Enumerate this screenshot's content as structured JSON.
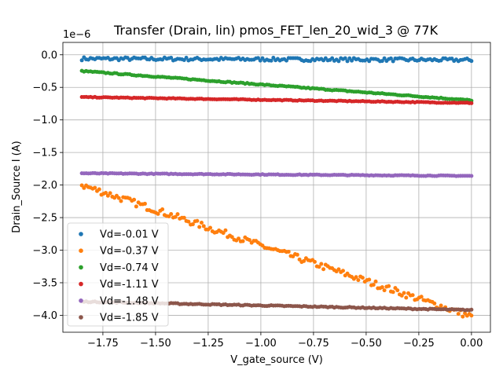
{
  "chart_data": {
    "type": "scatter",
    "title": "Transfer (Drain, lin) pmos_FET_len_20_wid_3 @ 77K",
    "xlabel": "V_gate_source (V)",
    "ylabel": "Drain_Source I (A)",
    "y_offset_label": "1e−6",
    "xlim": [
      -1.94,
      0.09
    ],
    "ylim": [
      -4.26,
      0.19
    ],
    "x_ticks": [
      -1.75,
      -1.5,
      -1.25,
      -1.0,
      -0.75,
      -0.5,
      -0.25,
      0.0
    ],
    "x_tick_labels": [
      "−1.75",
      "−1.50",
      "−1.25",
      "−1.00",
      "−0.75",
      "−0.50",
      "−0.25",
      "0.00"
    ],
    "y_ticks": [
      0.0,
      -0.5,
      -1.0,
      -1.5,
      -2.0,
      -2.5,
      -3.0,
      -3.5,
      -4.0
    ],
    "y_tick_labels": [
      "0.0",
      "−0.5",
      "−1.0",
      "−1.5",
      "−2.0",
      "−2.5",
      "−3.0",
      "−3.5",
      "−4.0"
    ],
    "grid": true,
    "legend_position": "lower-left",
    "x_range": [
      -1.85,
      0.0
    ],
    "series": [
      {
        "name": "Vd=-0.01 V",
        "color": "#1f77b4",
        "y_start": -0.06,
        "y_end": -0.08,
        "noise": 0.025
      },
      {
        "name": "Vd=-0.37 V",
        "color": "#ff7f0e",
        "y_start": -2.0,
        "y_end": -4.02,
        "noise": 0.05
      },
      {
        "name": "Vd=-0.74 V",
        "color": "#2ca02c",
        "y_start": -0.25,
        "y_end": -0.7,
        "noise": 0.008
      },
      {
        "name": "Vd=-1.11 V",
        "color": "#d62728",
        "y_start": -0.65,
        "y_end": -0.74,
        "noise": 0.006
      },
      {
        "name": "Vd=-1.48 V",
        "color": "#9467bd",
        "y_start": -1.82,
        "y_end": -1.86,
        "noise": 0.006
      },
      {
        "name": "Vd=-1.85 V",
        "color": "#8c564b",
        "y_start": -3.79,
        "y_end": -3.92,
        "noise": 0.008
      }
    ]
  }
}
